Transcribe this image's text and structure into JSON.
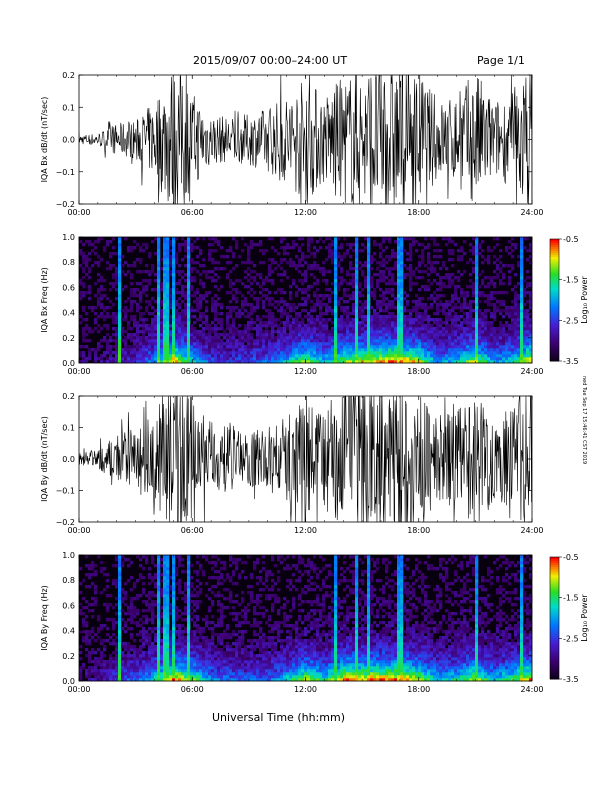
{
  "header": {
    "title": "2015/09/07  00:00–24:00 UT",
    "page": "Page 1/1"
  },
  "xlabel": "Universal Time (hh:mm)",
  "stamp": "ned Tue Sep 17 15:46:41 CST 2019",
  "colorbar": {
    "label": "Log₁₀ Power",
    "ticks": [
      "-0.5",
      "-1.5",
      "-2.5",
      "-3.5"
    ],
    "range": [
      -3.5,
      -0.5
    ]
  },
  "chart_data": [
    {
      "type": "line",
      "ylabel": "IQA Bx dB/dt (nT/sec)",
      "x_ticks": [
        "00:00",
        "06:00",
        "12:00",
        "18:00",
        "24:00"
      ],
      "y_ticks": [
        "0.2",
        "0.1",
        "0.0",
        "−0.1",
        "−0.2"
      ],
      "xlim": [
        0,
        24
      ],
      "ylim": [
        -0.2,
        0.2
      ],
      "envelope_hours": [
        0,
        1,
        2,
        3,
        4,
        5,
        6,
        7,
        8,
        9,
        10,
        11,
        12,
        13,
        14,
        15,
        16,
        17,
        18,
        19,
        20,
        21,
        22,
        23,
        24
      ],
      "envelope_amplitude": [
        0.015,
        0.02,
        0.05,
        0.06,
        0.12,
        0.25,
        0.15,
        0.08,
        0.07,
        0.08,
        0.1,
        0.14,
        0.2,
        0.14,
        0.2,
        0.22,
        0.25,
        0.25,
        0.22,
        0.12,
        0.14,
        0.22,
        0.12,
        0.15,
        0.25
      ]
    },
    {
      "type": "heatmap",
      "ylabel": "IQA Bx Freq (Hz)",
      "x_ticks": [
        "00:00",
        "06:00",
        "12:00",
        "18:00",
        "24:00"
      ],
      "y_ticks": [
        "1.0",
        "0.8",
        "0.6",
        "0.4",
        "0.2",
        "0.0"
      ],
      "xlim": [
        0,
        24
      ],
      "ylim": [
        0,
        1.0
      ],
      "zlim": [
        -3.5,
        -0.5
      ],
      "spike_hours": [
        2.1,
        4.2,
        4.6,
        5.0,
        5.8,
        13.6,
        14.7,
        15.3,
        17.0,
        21.1,
        23.5
      ]
    },
    {
      "type": "line",
      "ylabel": "IQA By dB/dt (nT/sec)",
      "x_ticks": [
        "00:00",
        "06:00",
        "12:00",
        "18:00",
        "24:00"
      ],
      "y_ticks": [
        "0.2",
        "0.1",
        "0.0",
        "−0.1",
        "−0.2"
      ],
      "xlim": [
        0,
        24
      ],
      "ylim": [
        -0.2,
        0.2
      ],
      "envelope_hours": [
        0,
        1,
        2,
        3,
        4,
        5,
        6,
        7,
        8,
        9,
        10,
        11,
        12,
        13,
        14,
        15,
        16,
        17,
        18,
        19,
        20,
        21,
        22,
        23,
        24
      ],
      "envelope_amplitude": [
        0.02,
        0.03,
        0.08,
        0.1,
        0.15,
        0.25,
        0.2,
        0.12,
        0.1,
        0.09,
        0.1,
        0.14,
        0.22,
        0.16,
        0.25,
        0.25,
        0.25,
        0.25,
        0.22,
        0.14,
        0.16,
        0.22,
        0.14,
        0.18,
        0.25
      ]
    },
    {
      "type": "heatmap",
      "ylabel": "IQA By Freq (Hz)",
      "x_ticks": [
        "00:00",
        "06:00",
        "12:00",
        "18:00",
        "24:00"
      ],
      "y_ticks": [
        "1.0",
        "0.8",
        "0.6",
        "0.4",
        "0.2",
        "0.0"
      ],
      "xlim": [
        0,
        24
      ],
      "ylim": [
        0,
        1.0
      ],
      "zlim": [
        -3.5,
        -0.5
      ],
      "spike_hours": [
        2.1,
        4.2,
        4.6,
        5.0,
        5.8,
        13.6,
        14.7,
        15.3,
        17.0,
        21.1,
        23.5
      ]
    }
  ]
}
